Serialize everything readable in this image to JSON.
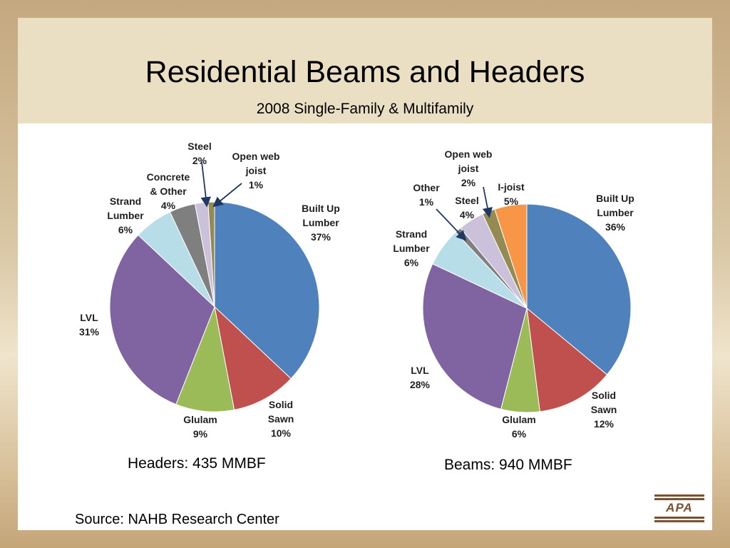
{
  "title": "Residential Beams and Headers",
  "subtitle": "2008 Single-Family & Multifamily",
  "source": "Source:  NAHB Research Center",
  "logo_text": "APA",
  "chart_data": [
    {
      "type": "pie",
      "caption": "Headers:  435 MMBF",
      "slices": [
        {
          "lines": [
            "Built Up",
            "Lumber",
            "37%"
          ],
          "value": 37,
          "color": "#4f81bd"
        },
        {
          "lines": [
            "Solid",
            "Sawn",
            "10%"
          ],
          "value": 10,
          "color": "#c0504d"
        },
        {
          "lines": [
            "Glulam",
            "9%"
          ],
          "value": 9,
          "color": "#9bbb59"
        },
        {
          "lines": [
            "LVL",
            "31%"
          ],
          "value": 31,
          "color": "#8064a2"
        },
        {
          "lines": [
            "Strand",
            "Lumber",
            "6%"
          ],
          "value": 6,
          "color": "#b7dde8"
        },
        {
          "lines": [
            "Concrete",
            "& Other",
            "4%"
          ],
          "value": 4,
          "color": "#7f7f7f"
        },
        {
          "lines": [
            "Steel",
            "2%"
          ],
          "value": 2,
          "color": "#ccc1da"
        },
        {
          "lines": [
            "Open web",
            "joist",
            "1%"
          ],
          "value": 1,
          "color": "#948a54"
        }
      ]
    },
    {
      "type": "pie",
      "caption": "Beams: 940 MMBF",
      "slices": [
        {
          "lines": [
            "Built Up",
            "Lumber",
            "36%"
          ],
          "value": 36,
          "color": "#4f81bd"
        },
        {
          "lines": [
            "Solid",
            "Sawn",
            "12%"
          ],
          "value": 12,
          "color": "#c0504d"
        },
        {
          "lines": [
            "Glulam",
            "6%"
          ],
          "value": 6,
          "color": "#9bbb59"
        },
        {
          "lines": [
            "LVL",
            "28%"
          ],
          "value": 28,
          "color": "#8064a2"
        },
        {
          "lines": [
            "Strand",
            "Lumber",
            "6%"
          ],
          "value": 6,
          "color": "#b7dde8"
        },
        {
          "lines": [
            "Other",
            "1%"
          ],
          "value": 1,
          "color": "#7f7f7f"
        },
        {
          "lines": [
            "Steel",
            "4%"
          ],
          "value": 4,
          "color": "#ccc1da"
        },
        {
          "lines": [
            "Open web",
            "joist",
            "2%"
          ],
          "value": 2,
          "color": "#948a54"
        },
        {
          "lines": [
            "I-joist",
            "5%"
          ],
          "value": 5,
          "color": "#f79646"
        }
      ]
    }
  ]
}
